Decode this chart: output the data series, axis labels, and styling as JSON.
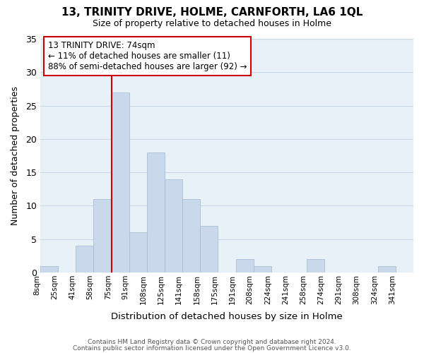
{
  "title_line1": "13, TRINITY DRIVE, HOLME, CARNFORTH, LA6 1QL",
  "title_line2": "Size of property relative to detached houses in Holme",
  "xlabel": "Distribution of detached houses by size in Holme",
  "ylabel": "Number of detached properties",
  "bin_labels": [
    "8sqm",
    "25sqm",
    "41sqm",
    "58sqm",
    "75sqm",
    "91sqm",
    "108sqm",
    "125sqm",
    "141sqm",
    "158sqm",
    "175sqm",
    "191sqm",
    "208sqm",
    "224sqm",
    "241sqm",
    "258sqm",
    "274sqm",
    "291sqm",
    "308sqm",
    "324sqm",
    "341sqm"
  ],
  "bar_values": [
    1,
    0,
    4,
    11,
    27,
    6,
    18,
    14,
    11,
    7,
    0,
    2,
    1,
    0,
    0,
    2,
    0,
    0,
    0,
    1,
    0
  ],
  "bar_color": "#c9d9eb",
  "bar_edge_color": "#a0b8d0",
  "vline_bin_index": 4,
  "vline_color": "#cc0000",
  "annotation_line1": "13 TRINITY DRIVE: 74sqm",
  "annotation_line2": "← 11% of detached houses are smaller (11)",
  "annotation_line3": "88% of semi-detached houses are larger (92) →",
  "annotation_box_color": "#ffffff",
  "annotation_box_edge": "#cc0000",
  "ylim": [
    0,
    35
  ],
  "yticks": [
    0,
    5,
    10,
    15,
    20,
    25,
    30,
    35
  ],
  "grid_color": "#c8d8e8",
  "background_color": "#e8f0f8",
  "footer_line1": "Contains HM Land Registry data © Crown copyright and database right 2024.",
  "footer_line2": "Contains public sector information licensed under the Open Government Licence v3.0."
}
